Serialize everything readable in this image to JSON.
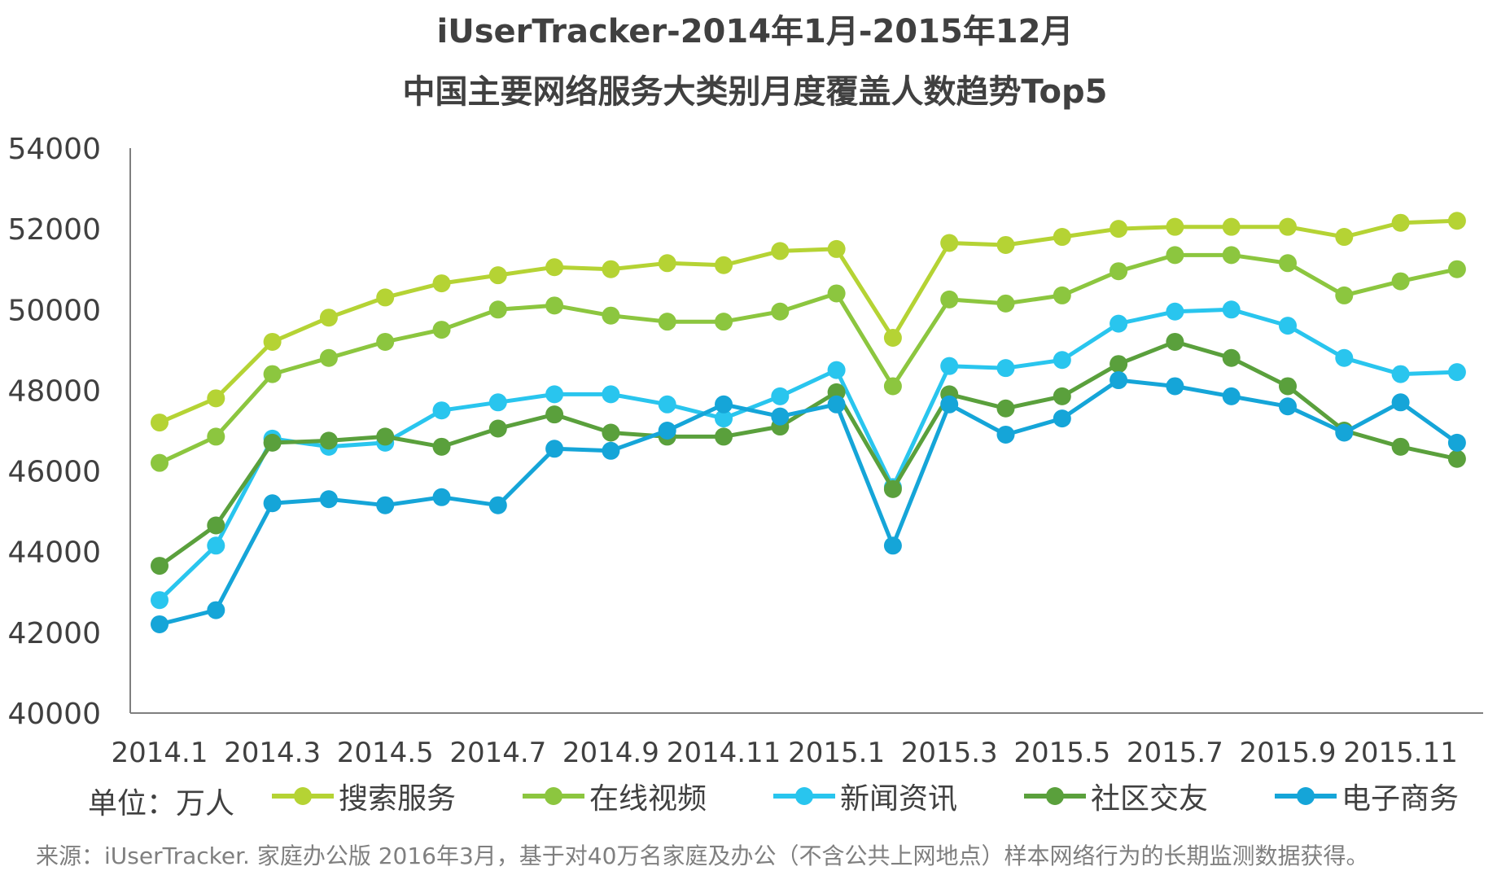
{
  "chart_data": {
    "type": "line",
    "title": "iUserTracker-2014年1月-2015年12月",
    "subtitle": "中国主要网络服务大类别月度覆盖人数趋势Top5",
    "ylim": [
      40000,
      54000
    ],
    "yticks": [
      "54000",
      "52000",
      "50000",
      "48000",
      "46000",
      "44000",
      "42000",
      "40000"
    ],
    "xtick_labels": [
      "2014.1",
      "2014.3",
      "2014.5",
      "2014.7",
      "2014.9",
      "2014.11",
      "2015.1",
      "2015.3",
      "2015.5",
      "2015.7",
      "2015.9",
      "2015.11"
    ],
    "x": [
      "2014.1",
      "2014.2",
      "2014.3",
      "2014.4",
      "2014.5",
      "2014.6",
      "2014.7",
      "2014.8",
      "2014.9",
      "2014.10",
      "2014.11",
      "2014.12",
      "2015.1",
      "2015.2",
      "2015.3",
      "2015.4",
      "2015.5",
      "2015.6",
      "2015.7",
      "2015.8",
      "2015.9",
      "2015.10",
      "2015.11",
      "2015.12"
    ],
    "unit_label": "单位：万人",
    "series": [
      {
        "name": "搜索服务",
        "color": "#b5d334",
        "values": [
          47200,
          47800,
          49200,
          49800,
          50300,
          50650,
          50850,
          51050,
          51000,
          51150,
          51100,
          51450,
          51500,
          49300,
          51650,
          51600,
          51800,
          52000,
          52050,
          52050,
          52050,
          51800,
          52150,
          52200
        ]
      },
      {
        "name": "在线视频",
        "color": "#8cc63f",
        "values": [
          46200,
          46850,
          48400,
          48800,
          49200,
          49500,
          50000,
          50100,
          49850,
          49700,
          49700,
          49950,
          50400,
          48100,
          50250,
          50150,
          50350,
          50950,
          51350,
          51350,
          51150,
          50350,
          50700,
          51000
        ]
      },
      {
        "name": "新闻资讯",
        "color": "#29c5ee",
        "values": [
          42800,
          44150,
          46800,
          46600,
          46700,
          47500,
          47700,
          47900,
          47900,
          47650,
          47300,
          47850,
          48500,
          45600,
          48600,
          48550,
          48750,
          49650,
          49950,
          50000,
          49600,
          48800,
          48400,
          48450
        ]
      },
      {
        "name": "社区交友",
        "color": "#5aa03c",
        "values": [
          43650,
          44650,
          46700,
          46750,
          46850,
          46600,
          47050,
          47400,
          46950,
          46850,
          46850,
          47100,
          47950,
          45550,
          47900,
          47550,
          47850,
          48650,
          49200,
          48800,
          48100,
          47000,
          46600,
          46300
        ]
      },
      {
        "name": "电子商务",
        "color": "#15a5d8",
        "values": [
          42200,
          42550,
          45200,
          45300,
          45150,
          45350,
          45150,
          46550,
          46500,
          47000,
          47650,
          47350,
          47650,
          44150,
          47650,
          46900,
          47300,
          48250,
          48100,
          47850,
          47600,
          46950,
          47700,
          46700
        ]
      }
    ]
  },
  "source_text": "来源：iUserTracker. 家庭办公版 2016年3月，基于对40万名家庭及办公（不含公共上网地点）样本网络行为的长期监测数据获得。"
}
